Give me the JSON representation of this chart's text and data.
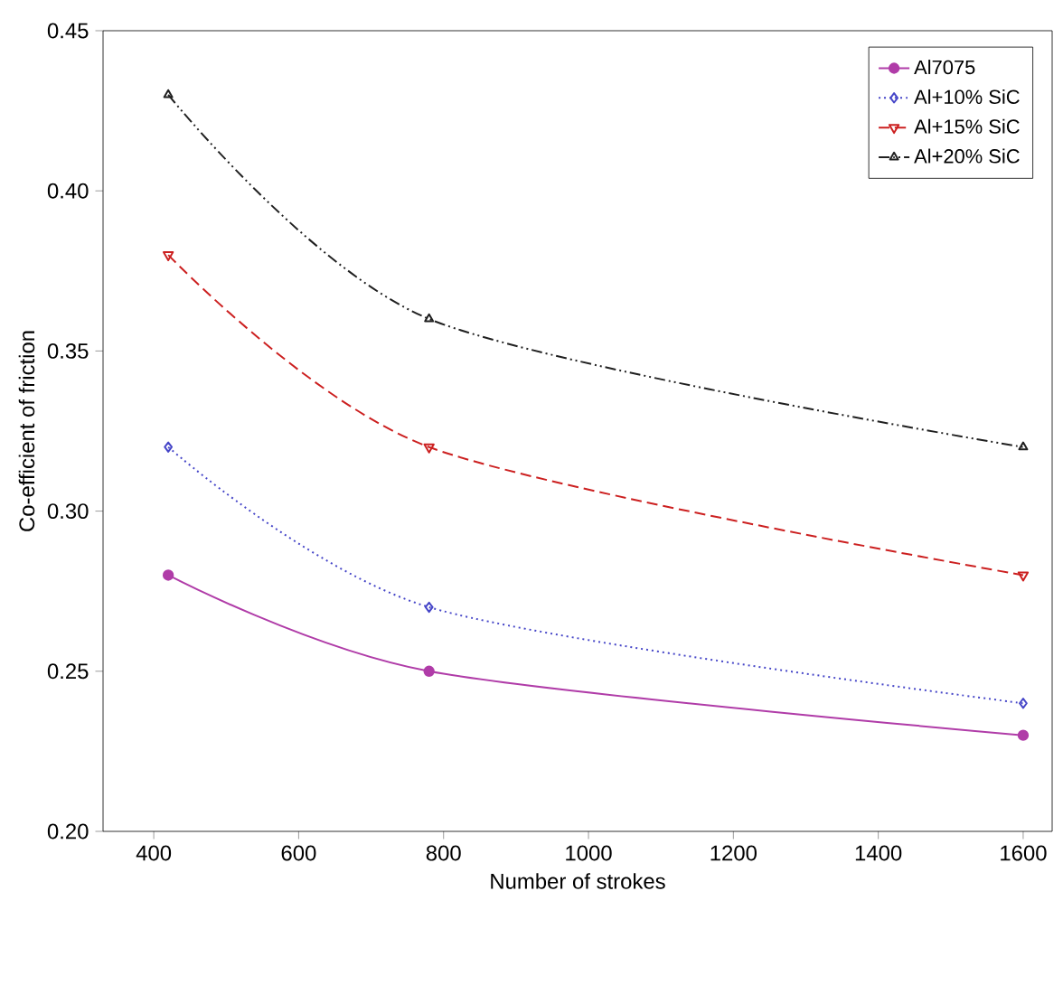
{
  "chart_data": {
    "type": "line",
    "xlabel": "Number of strokes",
    "ylabel": "Co-efficient of friction",
    "x": [
      420,
      780,
      1600
    ],
    "series": [
      {
        "name": "Al7075",
        "color": "#b03ca8",
        "values": [
          0.28,
          0.25,
          0.23
        ],
        "marker": "circle",
        "line_style": "solid"
      },
      {
        "name": "Al+10% SiC",
        "color": "#4646c8",
        "values": [
          0.32,
          0.27,
          0.24
        ],
        "marker": "diamond",
        "line_style": "dotted"
      },
      {
        "name": "Al+15% SiC",
        "color": "#cc2020",
        "values": [
          0.38,
          0.32,
          0.28
        ],
        "marker": "triangle",
        "line_style": "dashed"
      },
      {
        "name": "Al+20% SiC",
        "color": "#202020",
        "values": [
          0.43,
          0.36,
          0.32
        ],
        "marker": "triangle",
        "line_style": "dashdotdot"
      }
    ],
    "xlim": [
      330,
      1640
    ],
    "ylim": [
      0.2,
      0.45
    ],
    "xticks": [
      400,
      600,
      800,
      1000,
      1200,
      1400,
      1600
    ],
    "yticks": [
      {
        "value": 0.2,
        "label": "0.20"
      },
      {
        "value": 0.25,
        "label": "0.25"
      },
      {
        "value": 0.3,
        "label": "0.30"
      },
      {
        "value": 0.35,
        "label": "0.35"
      },
      {
        "value": 0.4,
        "label": "0.40"
      },
      {
        "value": 0.45,
        "label": "0.45"
      }
    ],
    "legend": "top right"
  }
}
